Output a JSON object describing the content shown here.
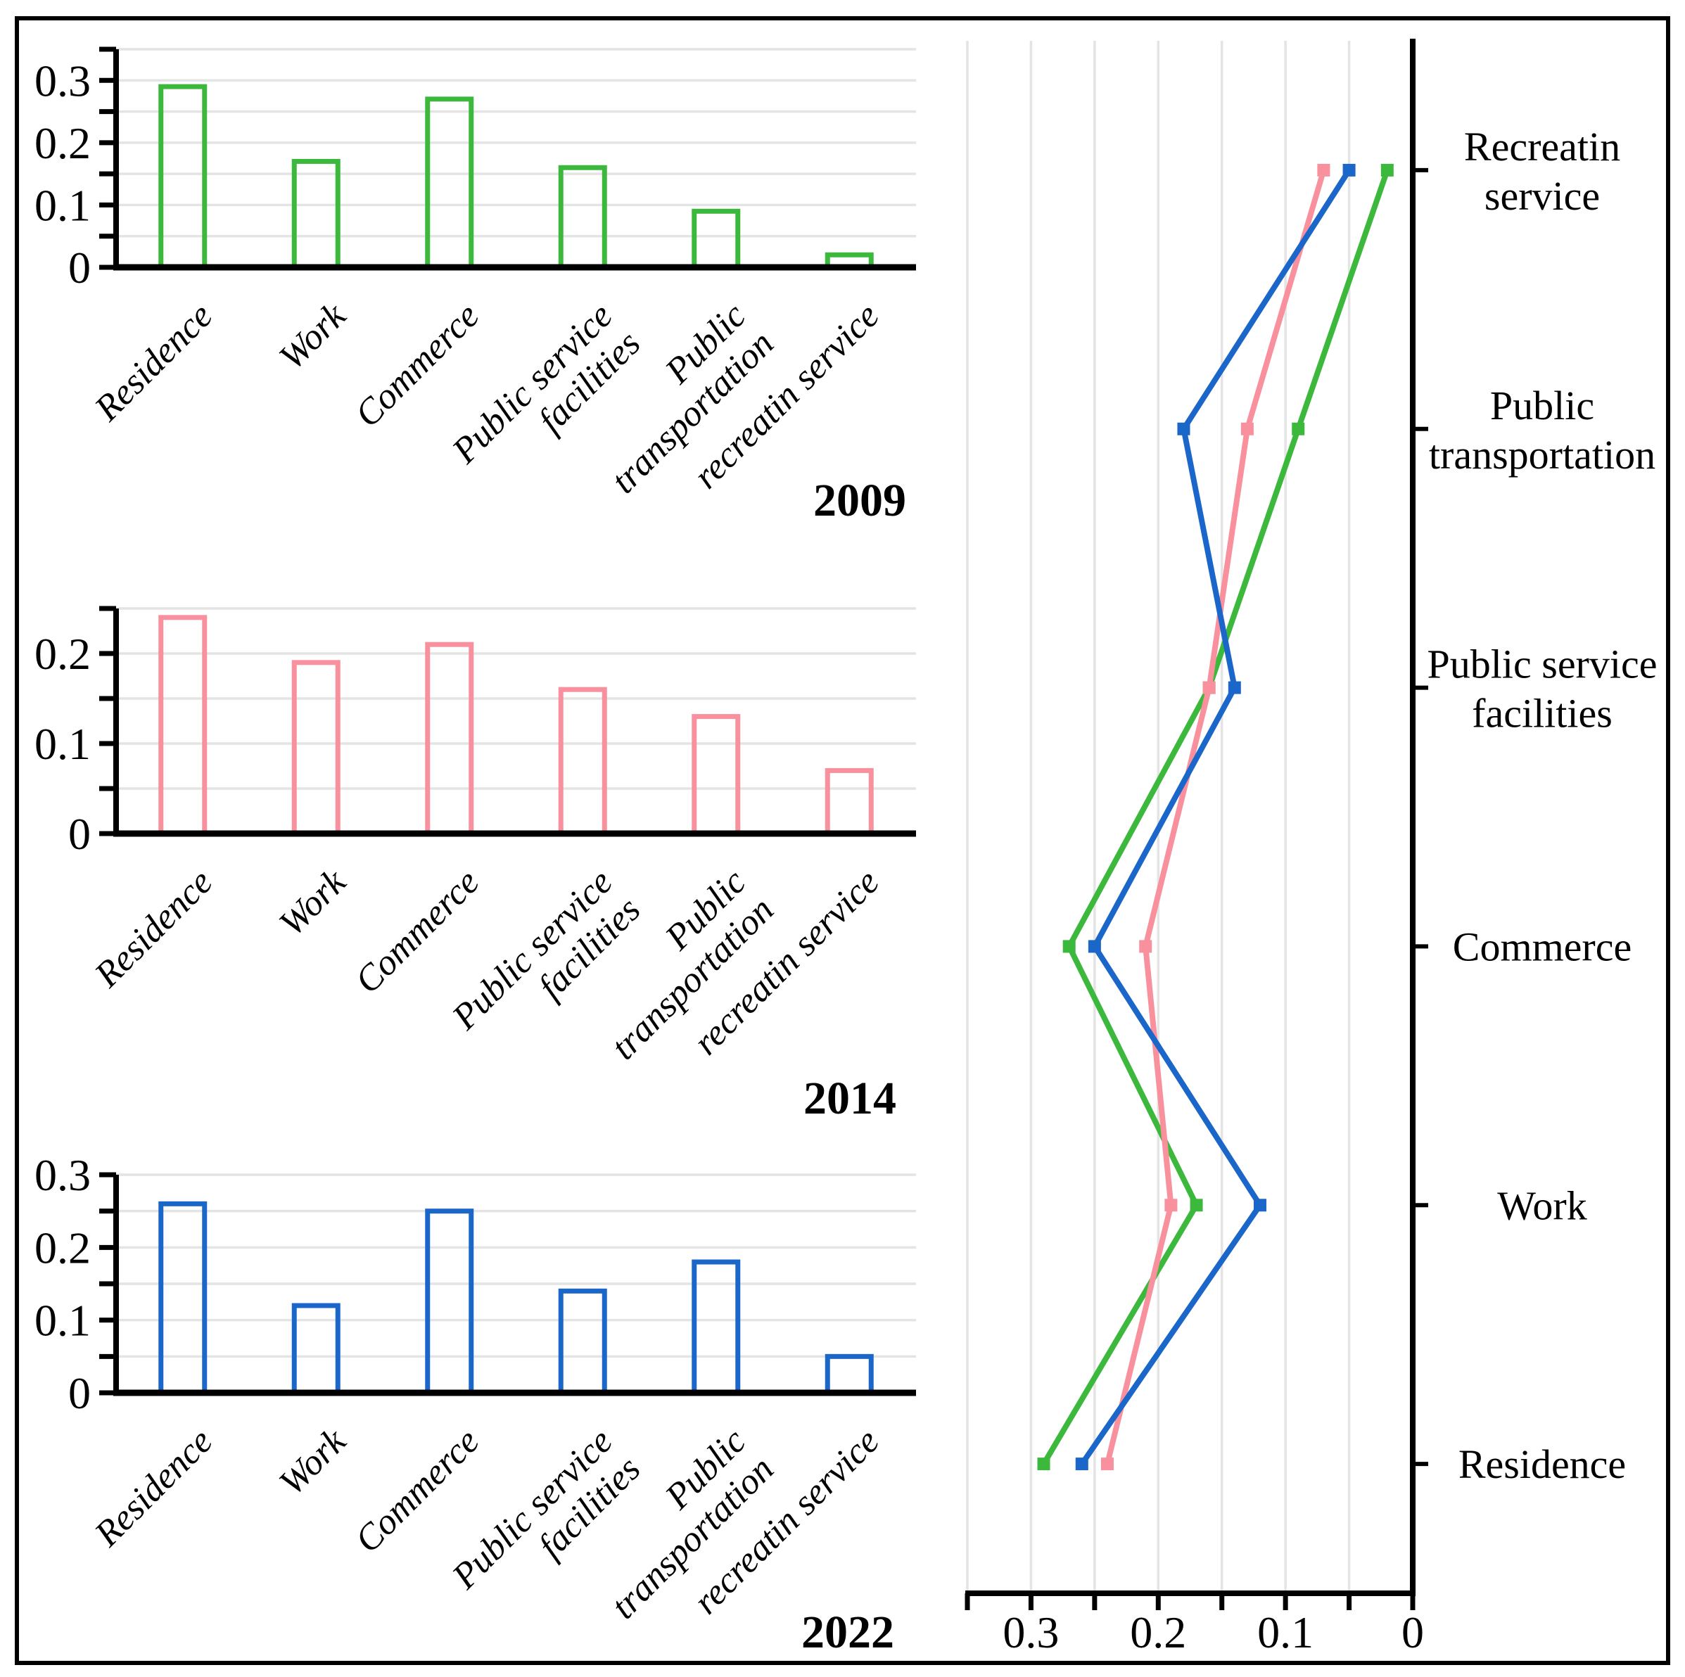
{
  "figure": {
    "background": "#ffffff",
    "border_color": "#000000",
    "grid_color": "#e4e4e4",
    "axis_color": "#000000"
  },
  "chart_data": [
    {
      "type": "bar",
      "title": "2009",
      "color": "#3CB93C",
      "categories": [
        "Residence",
        "Work",
        "Commerce",
        "Public service facilities",
        "Public transportation",
        "recreatin service"
      ],
      "category_lines": [
        [
          "Residence"
        ],
        [
          "Work"
        ],
        [
          "Commerce"
        ],
        [
          "Public service",
          "facilities"
        ],
        [
          "Public",
          "transportation"
        ],
        [
          "recreatin service"
        ]
      ],
      "values": [
        0.29,
        0.17,
        0.27,
        0.16,
        0.09,
        0.02
      ],
      "xlabel": "",
      "ylabel": "",
      "ylim": [
        0,
        0.35
      ],
      "yticks": [
        0,
        0.1,
        0.2,
        0.3
      ],
      "ytick_labels": [
        "0",
        "0.1",
        "0.2",
        "0.3"
      ],
      "grid_step": 0.05,
      "grid": true,
      "bar_fill": "none"
    },
    {
      "type": "bar",
      "title": "2014",
      "color": "#F9909E",
      "categories": [
        "Residence",
        "Work",
        "Commerce",
        "Public service facilities",
        "Public transportation",
        "recreatin service"
      ],
      "category_lines": [
        [
          "Residence"
        ],
        [
          "Work"
        ],
        [
          "Commerce"
        ],
        [
          "Public service",
          "facilities"
        ],
        [
          "Public",
          "transportation"
        ],
        [
          "recreatin service"
        ]
      ],
      "values": [
        0.24,
        0.19,
        0.21,
        0.16,
        0.13,
        0.07
      ],
      "xlabel": "",
      "ylabel": "",
      "ylim": [
        0,
        0.25
      ],
      "yticks": [
        0,
        0.1,
        0.2
      ],
      "ytick_labels": [
        "0",
        "0.1",
        "0.2"
      ],
      "grid_step": 0.05,
      "grid": true,
      "bar_fill": "none"
    },
    {
      "type": "bar",
      "title": "2022",
      "color": "#1B66C9",
      "categories": [
        "Residence",
        "Work",
        "Commerce",
        "Public service facilities",
        "Public transportation",
        "recreatin service"
      ],
      "category_lines": [
        [
          "Residence"
        ],
        [
          "Work"
        ],
        [
          "Commerce"
        ],
        [
          "Public service",
          "facilities"
        ],
        [
          "Public",
          "transportation"
        ],
        [
          "recreatin service"
        ]
      ],
      "values": [
        0.26,
        0.12,
        0.25,
        0.14,
        0.18,
        0.05
      ],
      "xlabel": "",
      "ylabel": "",
      "ylim": [
        0,
        0.3
      ],
      "yticks": [
        0,
        0.1,
        0.2,
        0.3
      ],
      "ytick_labels": [
        "0",
        "0.1",
        "0.2",
        "0.3"
      ],
      "grid_step": 0.05,
      "grid": true,
      "bar_fill": "none"
    },
    {
      "type": "line",
      "title": "",
      "orientation": "vertical-category-axis",
      "categories_top_to_bottom": [
        "Recreatin service",
        "Public transportation",
        "Public service facilities",
        "Commerce",
        "Work",
        "Residence"
      ],
      "category_lines": [
        [
          "Recreatin",
          "service"
        ],
        [
          "Public",
          "transportation"
        ],
        [
          "Public service",
          "facilities"
        ],
        [
          "Commerce"
        ],
        [
          "Work"
        ],
        [
          "Residence"
        ]
      ],
      "series": [
        {
          "name": "2009",
          "color": "#3CB93C",
          "values": [
            0.02,
            0.09,
            0.16,
            0.27,
            0.17,
            0.29
          ]
        },
        {
          "name": "2014",
          "color": "#F9909E",
          "values": [
            0.07,
            0.13,
            0.16,
            0.21,
            0.19,
            0.24
          ]
        },
        {
          "name": "2022",
          "color": "#1B66C9",
          "values": [
            0.05,
            0.18,
            0.14,
            0.25,
            0.12,
            0.26
          ]
        }
      ],
      "xlim": [
        0.35,
        0
      ],
      "axis_reversed": true,
      "xticks": [
        0.3,
        0.2,
        0.1,
        0
      ],
      "xtick_labels": [
        "0.3",
        "0.2",
        "0.1",
        "0"
      ],
      "grid_step": 0.05,
      "grid": true,
      "legend_position": "none",
      "marker": "square"
    }
  ]
}
